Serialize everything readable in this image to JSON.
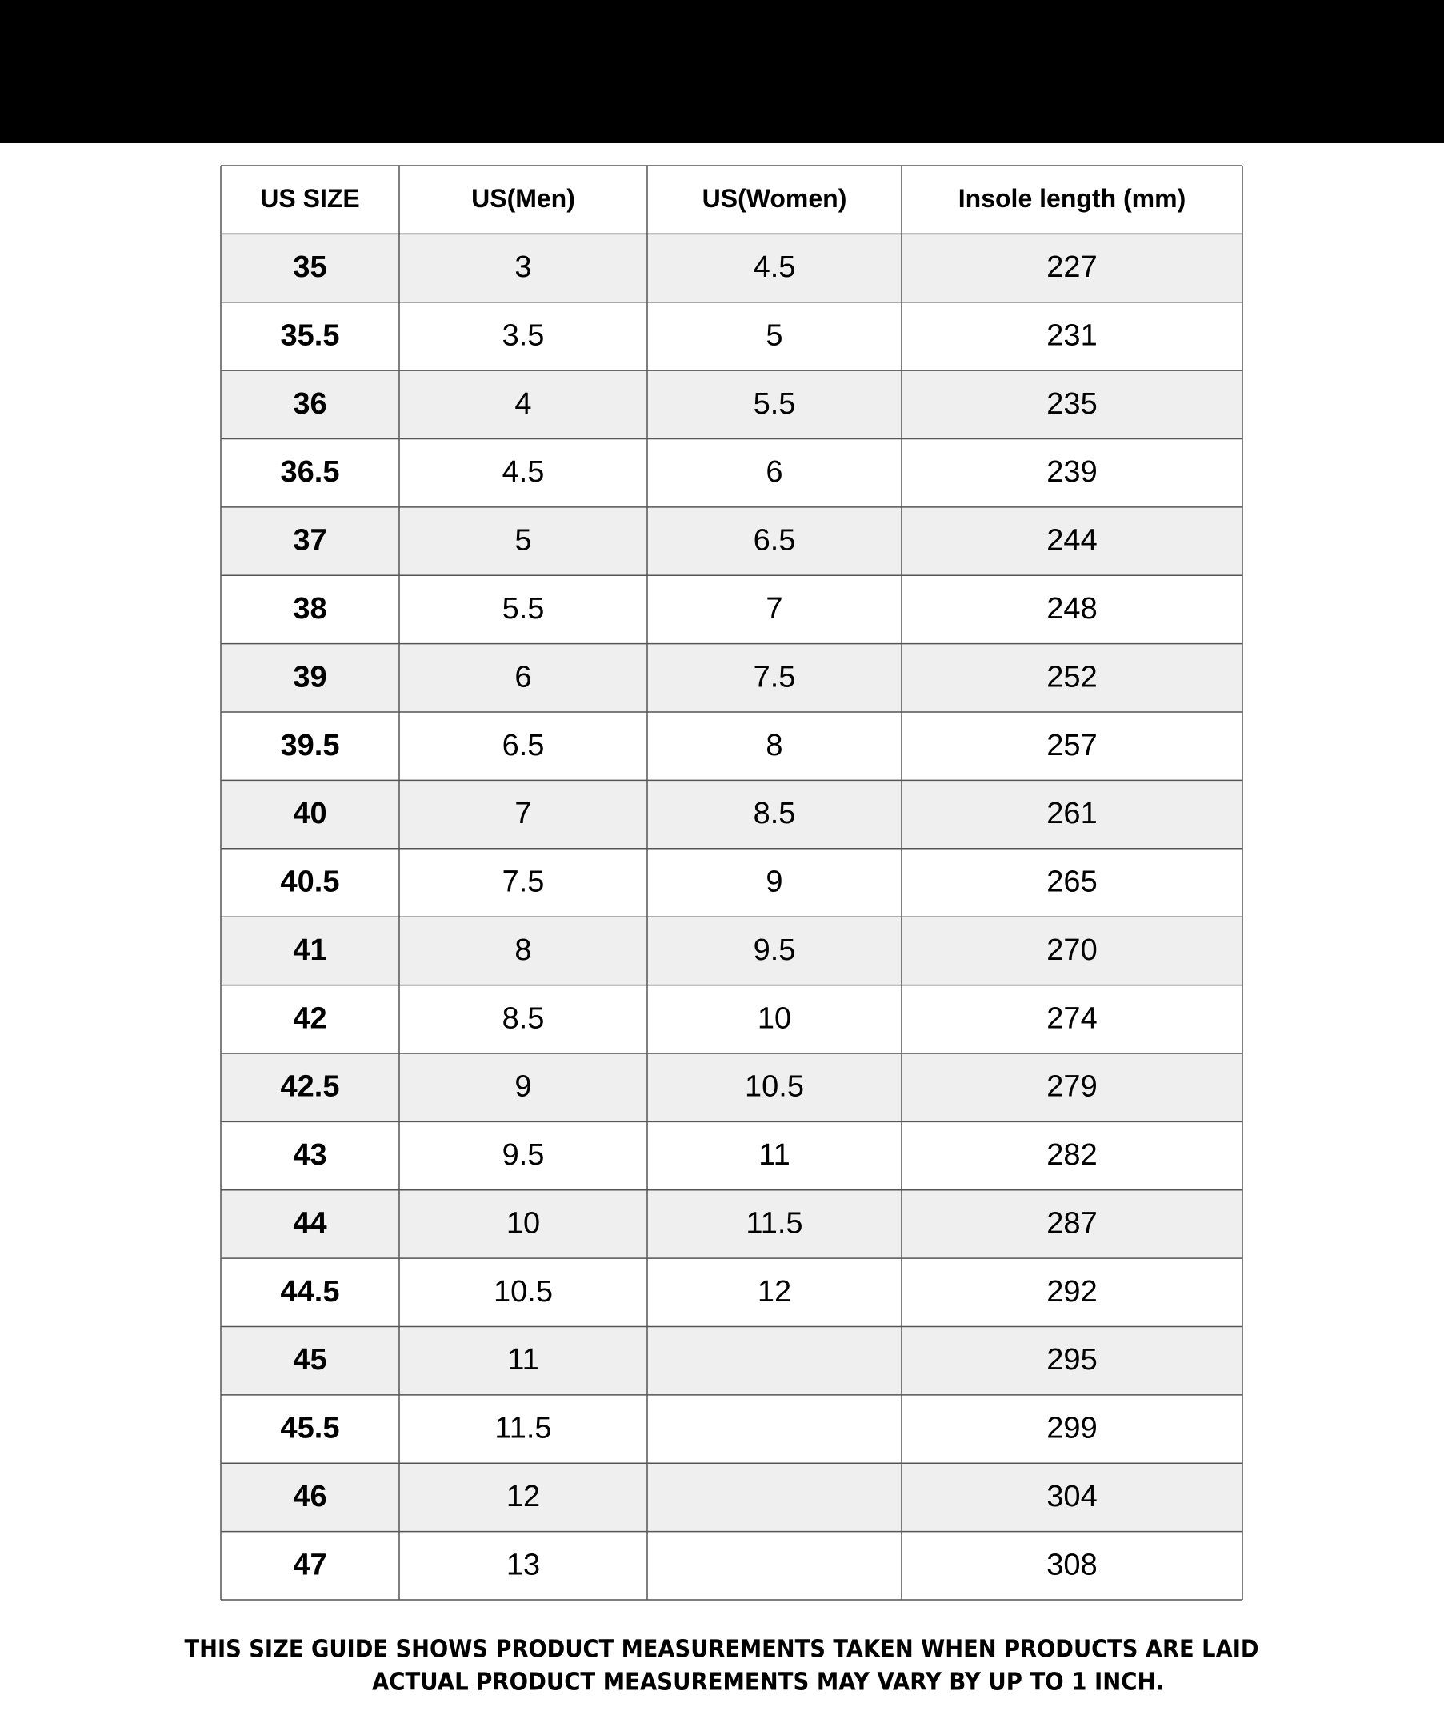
{
  "table": {
    "header": [
      "US SIZE",
      "US(Men)",
      "US(Women)",
      "Insole length (mm)"
    ],
    "rows": [
      [
        "35",
        "3",
        "4.5",
        "227"
      ],
      [
        "35.5",
        "3.5",
        "5",
        "231"
      ],
      [
        "36",
        "4",
        "5.5",
        "235"
      ],
      [
        "36.5",
        "4.5",
        "6",
        "239"
      ],
      [
        "37",
        "5",
        "6.5",
        "244"
      ],
      [
        "38",
        "5.5",
        "7",
        "248"
      ],
      [
        "39",
        "6",
        "7.5",
        "252"
      ],
      [
        "39.5",
        "6.5",
        "8",
        "257"
      ],
      [
        "40",
        "7",
        "8.5",
        "261"
      ],
      [
        "40.5",
        "7.5",
        "9",
        "265"
      ],
      [
        "41",
        "8",
        "9.5",
        "270"
      ],
      [
        "42",
        "8.5",
        "10",
        "274"
      ],
      [
        "42.5",
        "9",
        "10.5",
        "279"
      ],
      [
        "43",
        "9.5",
        "11",
        "282"
      ],
      [
        "44",
        "10",
        "11.5",
        "287"
      ],
      [
        "44.5",
        "10.5",
        "12",
        "292"
      ],
      [
        "45",
        "11",
        null,
        "295"
      ],
      [
        "45.5",
        "11.5",
        null,
        "299"
      ],
      [
        "46",
        "12",
        null,
        "304"
      ],
      [
        "47",
        "13",
        null,
        "308"
      ]
    ]
  },
  "footer": {
    "lines": [
      "THIS SIZE GUIDE SHOWS PRODUCT MEASUREMENTS TAKEN WHEN PRODUCTS ARE LAID",
      "ACTUAL PRODUCT MEASUREMENTS MAY VARY BY UP TO 1 INCH."
    ]
  }
}
